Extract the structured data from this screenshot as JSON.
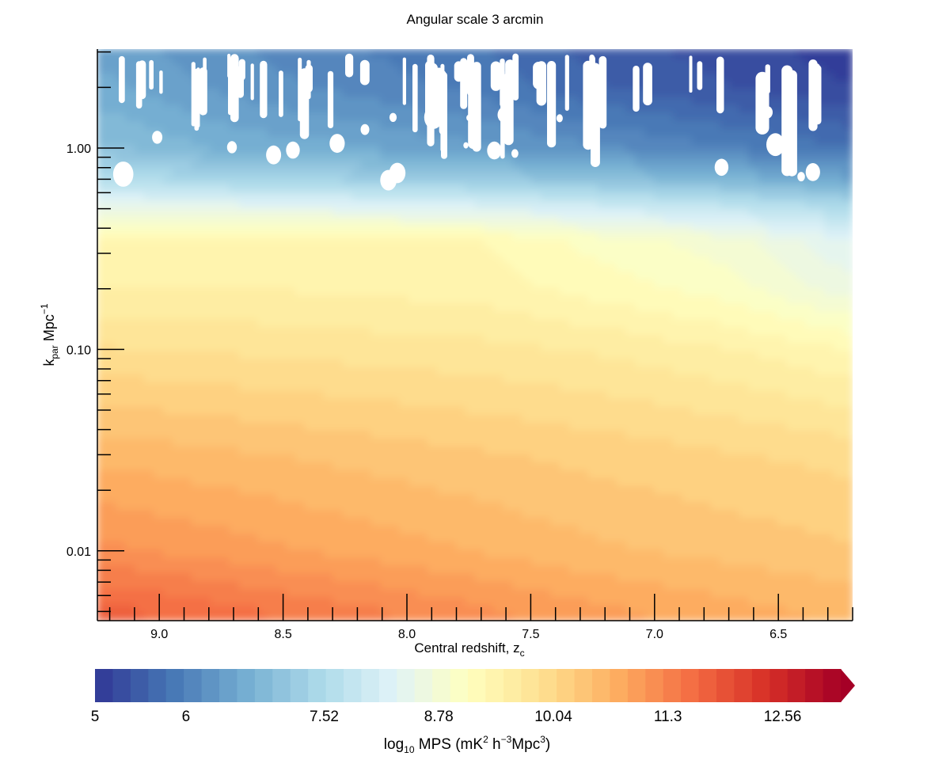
{
  "chart_data": {
    "type": "heatmap",
    "title": "Angular scale 3 arcmin",
    "xlabel": {
      "main": "Central redshift, z",
      "sub": "c"
    },
    "ylabel": {
      "main": "k",
      "sub": "par",
      "rest": " Mpc",
      "sup": "−1"
    },
    "x_axis": {
      "reversed": true,
      "lim": [
        9.25,
        6.2
      ],
      "major_ticks": [
        9.0,
        8.5,
        8.0,
        7.5,
        7.0,
        6.5
      ],
      "tick_labels": [
        "9.0",
        "8.5",
        "8.0",
        "7.5",
        "7.0",
        "6.5"
      ],
      "minor_step": 0.1
    },
    "y_axis": {
      "scale": "log",
      "lim": [
        0.0045,
        3.1
      ],
      "major_ticks": [
        0.01,
        0.1,
        1.0
      ],
      "tick_labels": [
        "0.01",
        "0.10",
        "1.00"
      ]
    },
    "colorbar": {
      "label": {
        "a": "log",
        "a_sub": "10",
        "b": " MPS (mK",
        "b_sup": "2",
        "c": " h",
        "c_sup": "−3",
        "d": "Mpc",
        "d_sup": "3",
        "e": ")"
      },
      "min": 5,
      "max": 13.2,
      "levels": 42,
      "ticks": [
        5,
        6,
        7.52,
        8.78,
        10.04,
        11.3,
        12.56
      ],
      "tick_labels": [
        "5",
        "6",
        "7.52",
        "8.78",
        "10.04",
        "11.3",
        "12.56"
      ],
      "extend": "max",
      "cmap": [
        "#313695",
        "#4575b4",
        "#74add1",
        "#abd9e9",
        "#e0f3f8",
        "#ffffbf",
        "#fee090",
        "#fdae61",
        "#f46d43",
        "#d73027",
        "#a50026"
      ]
    },
    "values_note_profile": {
      "z": [
        9.2,
        8.7,
        8.2,
        7.7,
        7.2,
        6.7,
        6.2
      ],
      "k": [
        0.005,
        0.01,
        0.03,
        0.1,
        0.2,
        0.35,
        0.5,
        0.7,
        1.0,
        2.0,
        3.0
      ],
      "log10_mps": [
        [
          11.7,
          11.5,
          11.3,
          11.1,
          10.9,
          10.75,
          10.6
        ],
        [
          11.1,
          10.95,
          10.8,
          10.65,
          10.5,
          10.4,
          10.3
        ],
        [
          10.6,
          10.5,
          10.4,
          10.3,
          10.2,
          10.1,
          10.0
        ],
        [
          9.9,
          9.85,
          9.8,
          9.75,
          9.65,
          9.5,
          9.3
        ],
        [
          9.5,
          9.5,
          9.45,
          9.4,
          9.2,
          9.0,
          8.6
        ],
        [
          9.3,
          9.3,
          9.35,
          9.3,
          9.0,
          8.8,
          8.3
        ],
        [
          8.6,
          8.5,
          8.4,
          8.3,
          8.1,
          7.9,
          7.6
        ],
        [
          7.6,
          7.4,
          7.3,
          7.2,
          7.0,
          6.8,
          6.5
        ],
        [
          7.0,
          6.7,
          6.6,
          6.4,
          6.2,
          6.0,
          5.8
        ],
        [
          6.6,
          6.3,
          6.1,
          5.9,
          5.6,
          5.4,
          5.2
        ],
        [
          6.5,
          6.2,
          6.0,
          5.8,
          5.5,
          5.3,
          5.1
        ]
      ]
    }
  }
}
